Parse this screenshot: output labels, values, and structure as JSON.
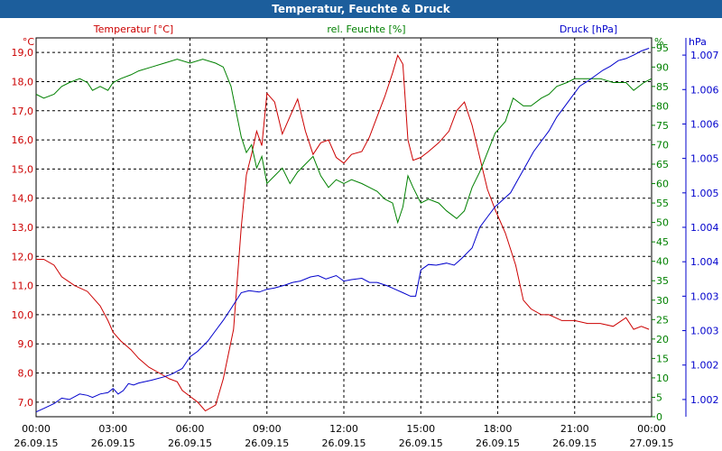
{
  "window": {
    "title": "Temperatur, Feuchte & Druck"
  },
  "colors": {
    "temperature": "#cc0000",
    "humidity": "#008000",
    "pressure": "#0000cc",
    "grid": "#000000",
    "titlebar": "#1c5e9c"
  },
  "chart_data": {
    "type": "line",
    "title": "Temperatur, Feuchte & Druck",
    "grid": true,
    "legend": "top, one label above each axis",
    "x_axis": {
      "range": [
        "26.09.15 00:00",
        "27.09.15 00:00"
      ],
      "ticks": [
        {
          "time": "00:00",
          "date": "26.09.15"
        },
        {
          "time": "03:00",
          "date": "26.09.15"
        },
        {
          "time": "06:00",
          "date": "26.09.15"
        },
        {
          "time": "09:00",
          "date": "26.09.15"
        },
        {
          "time": "12:00",
          "date": "26.09.15"
        },
        {
          "time": "15:00",
          "date": "26.09.15"
        },
        {
          "time": "18:00",
          "date": "26.09.15"
        },
        {
          "time": "21:00",
          "date": "26.09.15"
        },
        {
          "time": "00:00",
          "date": "27.09.15"
        }
      ]
    },
    "axes": {
      "temperature": {
        "label": "Temperatur [°C]",
        "unit": "°C",
        "ylim": [
          6.5,
          19.5
        ],
        "ticks": [
          "7,0",
          "8,0",
          "9,0",
          "10,0",
          "11,0",
          "12,0",
          "13,0",
          "14,0",
          "15,0",
          "16,0",
          "17,0",
          "18,0",
          "19,0"
        ]
      },
      "humidity": {
        "label": "rel. Feuchte [%]",
        "unit": "%",
        "ylim": [
          0,
          97.5
        ],
        "ticks": [
          "0",
          "5",
          "10",
          "15",
          "20",
          "25",
          "30",
          "35",
          "40",
          "45",
          "50",
          "55",
          "60",
          "65",
          "70",
          "75",
          "80",
          "85",
          "90",
          "95"
        ]
      },
      "pressure": {
        "label": "Druck [hPa]",
        "unit": "hPa",
        "ylim": [
          1001.75,
          1007.25
        ],
        "ticks": [
          "1.002",
          "1.002",
          "1.003",
          "1.003",
          "1.004",
          "1.004",
          "1.005",
          "1.005",
          "1.006",
          "1.006",
          "1.007"
        ]
      }
    },
    "series": [
      {
        "name": "Temperatur [°C]",
        "axis": "temperature",
        "x": [
          0,
          0.3,
          0.7,
          1,
          1.5,
          2,
          2.5,
          2.8,
          3,
          3.3,
          3.7,
          4,
          4.4,
          4.8,
          5.2,
          5.5,
          5.7,
          6,
          6.3,
          6.6,
          7,
          7.3,
          7.7,
          8,
          8.2,
          8.4,
          8.6,
          8.8,
          9,
          9.3,
          9.6,
          9.9,
          10.2,
          10.5,
          10.8,
          11.1,
          11.4,
          11.7,
          12,
          12.3,
          12.7,
          13,
          13.3,
          13.6,
          13.9,
          14.1,
          14.3,
          14.5,
          14.7,
          15,
          15.3,
          15.7,
          16.1,
          16.4,
          16.7,
          17,
          17.3,
          17.6,
          17.9,
          18.3,
          18.7,
          19,
          19.3,
          19.7,
          20,
          20.5,
          21,
          21.5,
          22,
          22.5,
          23,
          23.3,
          23.6,
          23.9
        ],
        "values": [
          11.9,
          11.9,
          11.7,
          11.3,
          11.0,
          10.8,
          10.3,
          9.8,
          9.4,
          9.1,
          8.8,
          8.5,
          8.2,
          8.0,
          7.8,
          7.7,
          7.4,
          7.2,
          7.0,
          6.7,
          6.9,
          7.8,
          9.5,
          13.0,
          14.8,
          15.5,
          16.3,
          15.8,
          17.6,
          17.3,
          16.2,
          16.8,
          17.4,
          16.3,
          15.5,
          15.9,
          16.0,
          15.4,
          15.2,
          15.5,
          15.6,
          16.1,
          16.8,
          17.5,
          18.3,
          18.9,
          18.6,
          16.0,
          15.3,
          15.4,
          15.6,
          15.9,
          16.3,
          17.0,
          17.3,
          16.5,
          15.4,
          14.3,
          13.6,
          12.8,
          11.7,
          10.5,
          10.2,
          10.0,
          10.0,
          9.8,
          9.8,
          9.7,
          9.7,
          9.6,
          9.9,
          9.5,
          9.6,
          9.5
        ]
      },
      {
        "name": "rel. Feuchte [%]",
        "axis": "humidity",
        "x": [
          0,
          0.3,
          0.7,
          1,
          1.3,
          1.7,
          2,
          2.2,
          2.5,
          2.8,
          3,
          3.3,
          3.7,
          4,
          4.5,
          5,
          5.5,
          6,
          6.5,
          7,
          7.3,
          7.6,
          8,
          8.2,
          8.4,
          8.6,
          8.8,
          9,
          9.3,
          9.6,
          9.9,
          10.2,
          10.5,
          10.8,
          11.1,
          11.4,
          11.7,
          12,
          12.3,
          12.7,
          13,
          13.3,
          13.6,
          13.9,
          14.1,
          14.3,
          14.5,
          14.7,
          15,
          15.3,
          15.7,
          16,
          16.4,
          16.7,
          17,
          17.3,
          17.6,
          17.9,
          18.3,
          18.6,
          19,
          19.3,
          19.7,
          20,
          20.3,
          20.7,
          21,
          21.5,
          22,
          22.5,
          23,
          23.3,
          23.7,
          24
        ],
        "values": [
          83,
          82,
          83,
          85,
          86,
          87,
          86,
          84,
          85,
          84,
          86,
          87,
          88,
          89,
          90,
          91,
          92,
          91,
          92,
          91,
          90,
          85,
          72,
          68,
          70,
          64,
          67,
          60,
          62,
          64,
          60,
          63,
          65,
          67,
          62,
          59,
          61,
          60,
          61,
          60,
          59,
          58,
          56,
          55,
          50,
          54,
          62,
          59,
          55,
          56,
          55,
          53,
          51,
          53,
          59,
          63,
          68,
          73,
          76,
          82,
          80,
          80,
          82,
          83,
          85,
          86,
          87,
          87,
          87,
          86,
          86,
          84,
          86,
          87
        ]
      },
      {
        "name": "Druck [hPa]",
        "axis": "pressure",
        "x": [
          0,
          0.3,
          0.7,
          1,
          1.3,
          1.7,
          2,
          2.2,
          2.5,
          2.8,
          3,
          3.2,
          3.4,
          3.6,
          3.8,
          4,
          4.5,
          5,
          5.3,
          5.7,
          6,
          6.3,
          6.7,
          7,
          7.3,
          7.6,
          8,
          8.3,
          8.7,
          9,
          9.3,
          9.7,
          10,
          10.3,
          10.7,
          11,
          11.3,
          11.7,
          12,
          12.3,
          12.7,
          13,
          13.3,
          13.7,
          14,
          14.3,
          14.6,
          14.8,
          15,
          15.3,
          15.6,
          16,
          16.3,
          16.6,
          17,
          17.3,
          17.6,
          17.9,
          18.2,
          18.5,
          18.8,
          19.1,
          19.4,
          19.7,
          20,
          20.3,
          20.6,
          20.9,
          21.2,
          21.5,
          21.8,
          22.1,
          22.4,
          22.7,
          23,
          23.3,
          23.6,
          23.9
        ],
        "values": [
          1001.82,
          1001.87,
          1001.94,
          1002.02,
          1002.0,
          1002.08,
          1002.06,
          1002.03,
          1002.08,
          1002.1,
          1002.16,
          1002.08,
          1002.13,
          1002.23,
          1002.21,
          1002.24,
          1002.28,
          1002.33,
          1002.37,
          1002.45,
          1002.62,
          1002.7,
          1002.85,
          1003.0,
          1003.15,
          1003.32,
          1003.55,
          1003.58,
          1003.56,
          1003.6,
          1003.62,
          1003.66,
          1003.7,
          1003.72,
          1003.78,
          1003.8,
          1003.75,
          1003.8,
          1003.72,
          1003.74,
          1003.76,
          1003.7,
          1003.7,
          1003.65,
          1003.6,
          1003.55,
          1003.5,
          1003.5,
          1003.88,
          1003.96,
          1003.95,
          1003.98,
          1003.95,
          1004.05,
          1004.2,
          1004.5,
          1004.65,
          1004.8,
          1004.9,
          1005.0,
          1005.2,
          1005.4,
          1005.6,
          1005.75,
          1005.9,
          1006.1,
          1006.25,
          1006.4,
          1006.55,
          1006.62,
          1006.7,
          1006.78,
          1006.84,
          1006.92,
          1006.95,
          1007.0,
          1007.06,
          1007.1
        ]
      }
    ]
  }
}
